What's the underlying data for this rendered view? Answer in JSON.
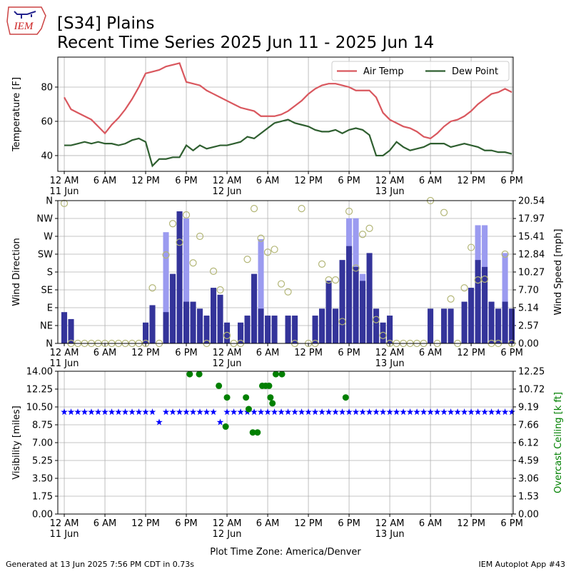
{
  "header": {
    "logo_text": "IEM",
    "title": "[S34] Plains",
    "subtitle": "Recent Time Series 2025 Jun 11 - 2025 Jun 14"
  },
  "footer": {
    "left": "Generated at 13 Jun 2025 7:56 PM CDT in 0.73s",
    "right": "IEM Autoplot App #43"
  },
  "chart_data": [
    {
      "type": "line",
      "ylabel": "Temperature [F]",
      "x": [
        0,
        1,
        2,
        3,
        4,
        5,
        6,
        7,
        8,
        9,
        10,
        11,
        12,
        13,
        14,
        15,
        16,
        17,
        18,
        19,
        20,
        21,
        22,
        23,
        24,
        25,
        26,
        27,
        28,
        29,
        30,
        31,
        32,
        33,
        34,
        35,
        36,
        37,
        38,
        39,
        40,
        41,
        42,
        43,
        44,
        45,
        46,
        47,
        48,
        49,
        50,
        51,
        52,
        53,
        54,
        55,
        56,
        57,
        58,
        59,
        60,
        61,
        62,
        63,
        64,
        65,
        66
      ],
      "xlim": [
        -0.95,
        66.2
      ],
      "xticks": [
        {
          "value": 0,
          "label": "12 AM"
        },
        {
          "value": 6,
          "label": "6 AM"
        },
        {
          "value": 12,
          "label": "12 PM"
        },
        {
          "value": 18,
          "label": "6 PM"
        },
        {
          "value": 24,
          "label": "12 AM"
        },
        {
          "value": 30,
          "label": "6 AM"
        },
        {
          "value": 36,
          "label": "12 PM"
        },
        {
          "value": 42,
          "label": "6 PM"
        },
        {
          "value": 48,
          "label": "12 AM"
        },
        {
          "value": 54,
          "label": "6 AM"
        },
        {
          "value": 60,
          "label": "12 PM"
        },
        {
          "value": 66,
          "label": "6 PM"
        }
      ],
      "xdates": [
        {
          "value": 0,
          "label": "11 Jun"
        },
        {
          "value": 24,
          "label": "12 Jun"
        },
        {
          "value": 48,
          "label": "13 Jun"
        }
      ],
      "ylim": [
        30.8,
        97.5
      ],
      "yticks": [
        40,
        60,
        80
      ],
      "grid": true,
      "legend": "upper right",
      "series": [
        {
          "name": "Air Temp",
          "type": "line",
          "color": "#d9575e",
          "values": [
            74,
            67,
            65,
            63,
            61,
            57,
            53,
            58,
            62,
            67,
            73,
            80,
            88,
            89,
            90,
            92,
            93,
            94,
            83,
            82,
            81,
            78,
            76,
            74,
            72,
            70,
            68,
            67,
            66,
            63,
            63,
            63,
            64,
            66,
            69,
            72,
            76,
            79,
            81,
            82,
            82,
            81,
            80,
            78,
            78,
            78,
            74,
            65,
            61,
            59,
            57,
            56,
            54,
            51,
            50,
            53,
            57,
            60,
            61,
            63,
            66,
            70,
            73,
            76,
            77,
            79,
            77
          ]
        },
        {
          "name": "Dew Point",
          "type": "line",
          "color": "#2f5f30",
          "values": [
            46,
            46,
            47,
            48,
            47,
            48,
            47,
            47,
            46,
            47,
            49,
            50,
            48,
            34,
            38,
            38,
            39,
            39,
            46,
            43,
            46,
            44,
            45,
            46,
            46,
            47,
            48,
            51,
            50,
            53,
            56,
            59,
            60,
            61,
            59,
            58,
            57,
            55,
            54,
            54,
            55,
            53,
            55,
            56,
            55,
            52,
            40,
            40,
            43,
            48,
            45,
            43,
            44,
            45,
            47,
            47,
            47,
            45,
            46,
            47,
            46,
            45,
            43,
            43,
            42,
            42,
            41
          ]
        }
      ]
    },
    {
      "type": "combo",
      "ylabel": "Wind Direction",
      "y2label": "Wind Speed [mph]",
      "x": [
        0,
        1,
        2,
        3,
        4,
        5,
        6,
        7,
        8,
        9,
        10,
        11,
        12,
        13,
        14,
        15,
        16,
        17,
        18,
        19,
        20,
        21,
        22,
        23,
        24,
        25,
        26,
        27,
        28,
        29,
        30,
        31,
        32,
        33,
        34,
        35,
        36,
        37,
        38,
        39,
        40,
        41,
        42,
        43,
        44,
        45,
        46,
        47,
        48,
        49,
        50,
        51,
        52,
        53,
        54,
        55,
        56,
        57,
        58,
        59,
        60,
        61,
        62,
        63,
        64,
        65,
        66
      ],
      "xlim": [
        -0.95,
        66.2
      ],
      "xticks": [
        {
          "value": 0,
          "label": "12 AM"
        },
        {
          "value": 6,
          "label": "6 AM"
        },
        {
          "value": 12,
          "label": "12 PM"
        },
        {
          "value": 18,
          "label": "6 PM"
        },
        {
          "value": 24,
          "label": "12 AM"
        },
        {
          "value": 30,
          "label": "6 AM"
        },
        {
          "value": 36,
          "label": "12 PM"
        },
        {
          "value": 42,
          "label": "6 PM"
        },
        {
          "value": 48,
          "label": "12 AM"
        },
        {
          "value": 54,
          "label": "6 AM"
        },
        {
          "value": 60,
          "label": "12 PM"
        },
        {
          "value": 66,
          "label": "6 PM"
        }
      ],
      "xdates": [
        {
          "value": 0,
          "label": "11 Jun"
        },
        {
          "value": 24,
          "label": "12 Jun"
        },
        {
          "value": 48,
          "label": "13 Jun"
        }
      ],
      "ylim": [
        0,
        360
      ],
      "yticks": [
        {
          "value": 0,
          "label": "N"
        },
        {
          "value": 45,
          "label": "NE"
        },
        {
          "value": 90,
          "label": "E"
        },
        {
          "value": 135,
          "label": "SE"
        },
        {
          "value": 180,
          "label": "S"
        },
        {
          "value": 225,
          "label": "SW"
        },
        {
          "value": 270,
          "label": "W"
        },
        {
          "value": 315,
          "label": "NW"
        },
        {
          "value": 360,
          "label": "N"
        }
      ],
      "y2lim": [
        0,
        20.54
      ],
      "y2ticks": [
        {
          "value": 0,
          "label": "0.00"
        },
        {
          "value": 2.57,
          "label": "2.57"
        },
        {
          "value": 5.14,
          "label": "5.14"
        },
        {
          "value": 7.7,
          "label": "7.70"
        },
        {
          "value": 10.27,
          "label": "10.27"
        },
        {
          "value": 12.84,
          "label": "12.84"
        },
        {
          "value": 15.41,
          "label": "15.41"
        },
        {
          "value": 17.97,
          "label": "17.97"
        },
        {
          "value": 20.54,
          "label": "20.54"
        }
      ],
      "grid": true,
      "series": [
        {
          "type": "bar",
          "axis": "y2",
          "color": "#9b9bf0",
          "values": [
            null,
            null,
            null,
            null,
            null,
            null,
            null,
            null,
            null,
            null,
            null,
            null,
            null,
            null,
            null,
            16,
            null,
            null,
            18,
            null,
            null,
            null,
            null,
            null,
            null,
            null,
            null,
            null,
            null,
            15,
            null,
            null,
            null,
            null,
            null,
            null,
            null,
            null,
            null,
            null,
            null,
            null,
            18,
            18,
            10,
            null,
            null,
            null,
            null,
            null,
            null,
            null,
            null,
            null,
            null,
            null,
            null,
            null,
            null,
            null,
            null,
            17,
            17,
            null,
            null,
            13,
            null
          ]
        },
        {
          "type": "bar",
          "axis": "y2",
          "color": "#34349a",
          "values": [
            4.5,
            3.5,
            0,
            0,
            0,
            0,
            0,
            0,
            0,
            0,
            0,
            0,
            3,
            5.5,
            0,
            4.5,
            10,
            19,
            6,
            6,
            5,
            4,
            8,
            7,
            3,
            0,
            3,
            4,
            10,
            5,
            4,
            4,
            0,
            4,
            4,
            0,
            0,
            4,
            5,
            9,
            5,
            12,
            14,
            11,
            9,
            13,
            5,
            3,
            4,
            0,
            0,
            0,
            0,
            0,
            5,
            0,
            5,
            5,
            0,
            6,
            8,
            12,
            11,
            6,
            5,
            6,
            5
          ]
        },
        {
          "type": "scatter",
          "marker": "circle-open",
          "color": "#b3b677",
          "values": [
            353,
            0,
            0,
            0,
            0,
            0,
            0,
            0,
            0,
            0,
            0,
            0,
            0,
            140,
            0,
            223,
            302,
            255,
            324,
            203,
            270,
            0,
            182,
            135,
            20,
            0,
            0,
            212,
            340,
            265,
            230,
            237,
            150,
            130,
            0,
            340,
            0,
            0,
            200,
            160,
            160,
            55,
            333,
            190,
            275,
            290,
            60,
            20,
            0,
            0,
            0,
            0,
            0,
            0,
            360,
            0,
            330,
            112,
            0,
            140,
            242,
            160,
            162,
            0,
            0,
            225,
            0
          ]
        }
      ]
    },
    {
      "type": "combo",
      "ylabel": "Visibility [miles]",
      "y2label": "Overcast Ceiling [k ft]",
      "y2color": "#008000",
      "xlabel": "Plot Time Zone: America/Denver",
      "x": [
        0,
        1,
        2,
        3,
        4,
        5,
        6,
        7,
        8,
        9,
        10,
        11,
        12,
        13,
        14,
        15,
        16,
        17,
        18,
        19,
        20,
        21,
        22,
        23,
        24,
        25,
        26,
        27,
        28,
        29,
        30,
        31,
        32,
        33,
        34,
        35,
        36,
        37,
        38,
        39,
        40,
        41,
        42,
        43,
        44,
        45,
        46,
        47,
        48,
        49,
        50,
        51,
        52,
        53,
        54,
        55,
        56,
        57,
        58,
        59,
        60,
        61,
        62,
        63,
        64,
        65,
        66
      ],
      "xlim": [
        -0.95,
        66.2
      ],
      "xticks": [
        {
          "value": 0,
          "label": "12 AM"
        },
        {
          "value": 6,
          "label": "6 AM"
        },
        {
          "value": 12,
          "label": "12 PM"
        },
        {
          "value": 18,
          "label": "6 PM"
        },
        {
          "value": 24,
          "label": "12 AM"
        },
        {
          "value": 30,
          "label": "6 AM"
        },
        {
          "value": 36,
          "label": "12 PM"
        },
        {
          "value": 42,
          "label": "6 PM"
        },
        {
          "value": 48,
          "label": "12 AM"
        },
        {
          "value": 54,
          "label": "6 AM"
        },
        {
          "value": 60,
          "label": "12 PM"
        },
        {
          "value": 66,
          "label": "6 PM"
        }
      ],
      "xdates": [
        {
          "value": 0,
          "label": "11 Jun"
        },
        {
          "value": 24,
          "label": "12 Jun"
        },
        {
          "value": 48,
          "label": "13 Jun"
        }
      ],
      "ylim": [
        0,
        14
      ],
      "yticks": [
        {
          "value": 0,
          "label": "0.00"
        },
        {
          "value": 1.75,
          "label": "1.75"
        },
        {
          "value": 3.5,
          "label": "3.50"
        },
        {
          "value": 5.25,
          "label": "5.25"
        },
        {
          "value": 7,
          "label": "7.00"
        },
        {
          "value": 8.75,
          "label": "8.75"
        },
        {
          "value": 10.5,
          "label": "10.50"
        },
        {
          "value": 12.25,
          "label": "12.25"
        },
        {
          "value": 14,
          "label": "14.00"
        }
      ],
      "y2lim": [
        0,
        12.25
      ],
      "y2ticks": [
        {
          "value": 0,
          "label": "0.00"
        },
        {
          "value": 1.53,
          "label": "1.53"
        },
        {
          "value": 3.06,
          "label": "3.06"
        },
        {
          "value": 4.59,
          "label": "4.59"
        },
        {
          "value": 6.12,
          "label": "6.12"
        },
        {
          "value": 7.66,
          "label": "7.66"
        },
        {
          "value": 9.19,
          "label": "9.19"
        },
        {
          "value": 10.72,
          "label": "10.72"
        },
        {
          "value": 12.25,
          "label": "12.25"
        }
      ],
      "grid": true,
      "series": [
        {
          "type": "scatter",
          "marker": "star",
          "color": "#0000ff",
          "values": [
            10,
            10,
            10,
            10,
            10,
            10,
            10,
            10,
            10,
            10,
            10,
            10,
            10,
            10,
            9,
            10,
            10,
            10,
            10,
            10,
            10,
            10,
            10,
            9,
            10,
            10,
            10,
            10,
            10,
            10,
            10,
            10,
            10,
            10,
            10,
            10,
            10,
            10,
            10,
            10,
            10,
            10,
            10,
            10,
            10,
            10,
            10,
            10,
            10,
            10,
            10,
            10,
            10,
            10,
            10,
            10,
            10,
            10,
            10,
            10,
            10,
            10,
            10,
            10,
            10,
            10,
            10
          ]
        },
        {
          "type": "scatter",
          "marker": "dot",
          "axis": "y2",
          "color": "#008000",
          "x": [
            18.5,
            19.9,
            22.8,
            23.8,
            24.0,
            26.8,
            27.2,
            27.8,
            28.5,
            29.2,
            29.7,
            30.2,
            30.4,
            30.7,
            31.2,
            32.1,
            41.5
          ],
          "values": [
            12,
            12,
            11,
            7.5,
            10,
            10,
            9,
            7,
            7,
            11,
            11,
            11,
            10,
            9.5,
            12,
            12,
            10
          ]
        }
      ]
    }
  ]
}
